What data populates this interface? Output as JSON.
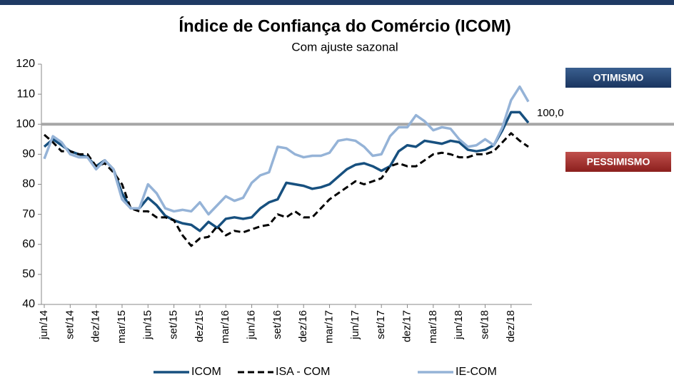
{
  "chart_data": {
    "type": "line",
    "title": "Índice de Confiança do Comércio (ICOM)",
    "subtitle": "Com ajuste sazonal",
    "categories": [
      "jun/14",
      null,
      null,
      "set/14",
      null,
      null,
      "dez/14",
      null,
      null,
      "mar/15",
      null,
      null,
      "jun/15",
      null,
      null,
      "set/15",
      null,
      null,
      "dez/15",
      null,
      null,
      "mar/16",
      null,
      null,
      "jun/16",
      null,
      null,
      "set/16",
      null,
      null,
      "dez/16",
      null,
      null,
      "mar/17",
      null,
      null,
      "jun/17",
      null,
      null,
      "set/17",
      null,
      null,
      "dez/17",
      null,
      null,
      "mar/18",
      null,
      null,
      "jun/18",
      null,
      null,
      "set/18",
      null,
      null,
      "dez/18",
      null,
      null
    ],
    "series": [
      {
        "name": "ICOM",
        "color": "#17507f",
        "dash": false,
        "values": [
          92.5,
          95,
          93,
          91,
          90,
          89,
          86,
          88,
          85,
          77,
          72,
          72,
          75.5,
          73,
          69.5,
          68,
          67,
          66.5,
          64.5,
          67.5,
          65.5,
          68.5,
          69,
          68.5,
          69,
          72,
          74,
          75,
          80.5,
          80,
          79.5,
          78.5,
          79,
          80,
          82.5,
          85,
          86.5,
          87,
          86,
          84.5,
          86,
          91,
          93,
          92.5,
          94.5,
          94,
          93.5,
          94.5,
          94,
          91.5,
          91,
          91.5,
          93,
          98,
          104,
          104,
          100.5
        ]
      },
      {
        "name": "ISA - COM",
        "color": "#000000",
        "dash": true,
        "values": [
          96.5,
          94,
          91,
          91,
          90,
          90,
          86,
          87,
          84,
          80,
          72,
          71,
          71,
          69,
          69,
          68,
          63,
          59.5,
          62,
          62.5,
          66,
          63,
          64.5,
          64,
          65,
          66,
          66.5,
          70,
          69,
          71,
          69,
          69,
          72,
          75,
          77,
          79,
          81,
          80,
          81,
          82,
          86,
          87,
          86,
          86,
          88,
          90,
          90.5,
          90,
          89,
          89,
          90,
          90,
          91,
          94,
          97,
          94.5,
          92.5
        ]
      },
      {
        "name": "IE-COM",
        "color": "#95b3d7",
        "dash": false,
        "values": [
          88.5,
          96,
          94,
          90,
          89,
          89,
          85,
          88,
          85,
          75,
          72,
          72,
          80,
          77,
          72,
          71,
          71.5,
          71,
          74,
          70,
          73,
          76,
          74.5,
          75.5,
          80.5,
          83,
          84,
          92.5,
          92,
          90,
          89,
          89.5,
          89.5,
          90.5,
          94.5,
          95,
          94.5,
          92.5,
          89.5,
          90,
          96,
          99,
          99,
          103,
          101,
          98,
          99,
          98.5,
          95,
          92.5,
          93,
          95,
          93,
          99,
          108,
          112.5,
          107.5
        ]
      }
    ],
    "ylim": [
      40,
      120
    ],
    "yticks": [
      40,
      50,
      60,
      70,
      80,
      90,
      100,
      110,
      120
    ],
    "reference_line": {
      "value": 100,
      "label": "100,0"
    },
    "zones": [
      "OTIMISMO",
      "PESSIMISMO"
    ],
    "legend": "bottom"
  }
}
